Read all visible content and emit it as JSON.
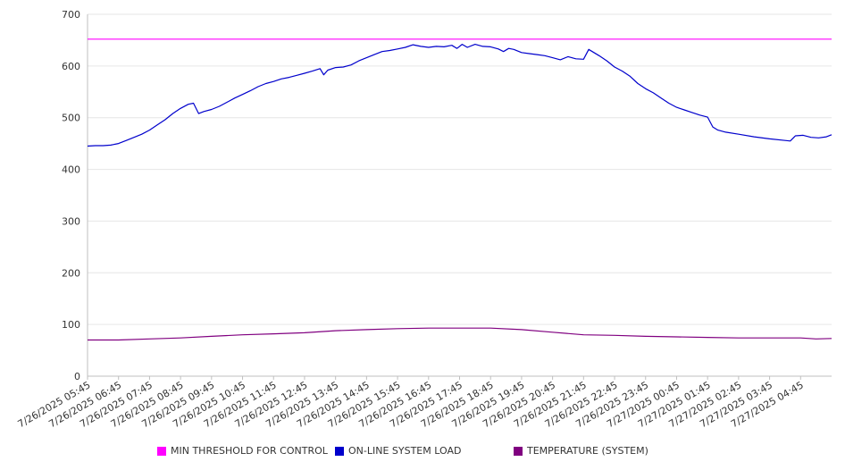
{
  "chart_data": {
    "type": "line",
    "title": "",
    "xlabel": "",
    "ylabel": "",
    "ylim": [
      0,
      700
    ],
    "yticks": [
      "0",
      "100",
      "200",
      "300",
      "400",
      "500",
      "600",
      "700"
    ],
    "x_tick_labels": [
      "7/26/2025 05:45",
      "7/26/2025 06:45",
      "7/26/2025 07:45",
      "7/26/2025 08:45",
      "7/26/2025 09:45",
      "7/26/2025 10:45",
      "7/26/2025 11:45",
      "7/26/2025 12:45",
      "7/26/2025 13:45",
      "7/26/2025 14:45",
      "7/26/2025 15:45",
      "7/26/2025 16:45",
      "7/26/2025 17:45",
      "7/26/2025 18:45",
      "7/26/2025 19:45",
      "7/26/2025 20:45",
      "7/26/2025 21:45",
      "7/26/2025 22:45",
      "7/26/2025 23:45",
      "7/27/2025 00:45",
      "7/27/2025 01:45",
      "7/27/2025 02:45",
      "7/27/2025 03:45",
      "7/27/2025 04:45"
    ],
    "xlim": [
      "7/26/2025 05:45",
      "7/27/2025 05:45"
    ],
    "grid": "horizontal",
    "legend_position": "bottom",
    "series": [
      {
        "name": "MIN THRESHOLD FOR CONTROL",
        "color": "#ff00ff",
        "points": [
          [
            "7/26/2025 05:45",
            652
          ],
          [
            "7/27/2025 05:45",
            652
          ]
        ]
      },
      {
        "name": "ON-LINE SYSTEM LOAD",
        "color": "#0000cc",
        "points": [
          [
            "7/26/2025 05:45",
            445
          ],
          [
            "7/26/2025 06:00",
            446
          ],
          [
            "7/26/2025 06:15",
            446
          ],
          [
            "7/26/2025 06:30",
            447
          ],
          [
            "7/26/2025 06:45",
            450
          ],
          [
            "7/26/2025 07:00",
            456
          ],
          [
            "7/26/2025 07:15",
            462
          ],
          [
            "7/26/2025 07:30",
            468
          ],
          [
            "7/26/2025 07:45",
            476
          ],
          [
            "7/26/2025 08:00",
            486
          ],
          [
            "7/26/2025 08:15",
            496
          ],
          [
            "7/26/2025 08:30",
            508
          ],
          [
            "7/26/2025 08:45",
            518
          ],
          [
            "7/26/2025 09:00",
            526
          ],
          [
            "7/26/2025 09:10",
            528
          ],
          [
            "7/26/2025 09:20",
            508
          ],
          [
            "7/26/2025 09:30",
            512
          ],
          [
            "7/26/2025 09:45",
            516
          ],
          [
            "7/26/2025 10:00",
            522
          ],
          [
            "7/26/2025 10:15",
            530
          ],
          [
            "7/26/2025 10:30",
            538
          ],
          [
            "7/26/2025 10:45",
            545
          ],
          [
            "7/26/2025 11:00",
            552
          ],
          [
            "7/26/2025 11:15",
            560
          ],
          [
            "7/26/2025 11:30",
            566
          ],
          [
            "7/26/2025 11:45",
            570
          ],
          [
            "7/26/2025 12:00",
            575
          ],
          [
            "7/26/2025 12:15",
            578
          ],
          [
            "7/26/2025 12:30",
            582
          ],
          [
            "7/26/2025 12:45",
            586
          ],
          [
            "7/26/2025 13:00",
            590
          ],
          [
            "7/26/2025 13:15",
            595
          ],
          [
            "7/26/2025 13:22",
            583
          ],
          [
            "7/26/2025 13:30",
            592
          ],
          [
            "7/26/2025 13:45",
            597
          ],
          [
            "7/26/2025 14:00",
            598
          ],
          [
            "7/26/2025 14:15",
            602
          ],
          [
            "7/26/2025 14:30",
            610
          ],
          [
            "7/26/2025 14:45",
            616
          ],
          [
            "7/26/2025 15:00",
            622
          ],
          [
            "7/26/2025 15:15",
            628
          ],
          [
            "7/26/2025 15:30",
            630
          ],
          [
            "7/26/2025 15:45",
            633
          ],
          [
            "7/26/2025 16:00",
            636
          ],
          [
            "7/26/2025 16:15",
            641
          ],
          [
            "7/26/2025 16:30",
            638
          ],
          [
            "7/26/2025 16:45",
            636
          ],
          [
            "7/26/2025 17:00",
            638
          ],
          [
            "7/26/2025 17:15",
            637
          ],
          [
            "7/26/2025 17:30",
            640
          ],
          [
            "7/26/2025 17:40",
            634
          ],
          [
            "7/26/2025 17:50",
            642
          ],
          [
            "7/26/2025 18:00",
            636
          ],
          [
            "7/26/2025 18:15",
            642
          ],
          [
            "7/26/2025 18:30",
            638
          ],
          [
            "7/26/2025 18:45",
            637
          ],
          [
            "7/26/2025 19:00",
            633
          ],
          [
            "7/26/2025 19:10",
            628
          ],
          [
            "7/26/2025 19:20",
            634
          ],
          [
            "7/26/2025 19:30",
            632
          ],
          [
            "7/26/2025 19:45",
            626
          ],
          [
            "7/26/2025 20:00",
            624
          ],
          [
            "7/26/2025 20:15",
            622
          ],
          [
            "7/26/2025 20:30",
            620
          ],
          [
            "7/26/2025 20:45",
            616
          ],
          [
            "7/26/2025 21:00",
            612
          ],
          [
            "7/26/2025 21:15",
            618
          ],
          [
            "7/26/2025 21:30",
            614
          ],
          [
            "7/26/2025 21:45",
            613
          ],
          [
            "7/26/2025 21:55",
            632
          ],
          [
            "7/26/2025 22:05",
            626
          ],
          [
            "7/26/2025 22:15",
            620
          ],
          [
            "7/26/2025 22:30",
            610
          ],
          [
            "7/26/2025 22:45",
            598
          ],
          [
            "7/26/2025 23:00",
            590
          ],
          [
            "7/26/2025 23:15",
            580
          ],
          [
            "7/26/2025 23:30",
            566
          ],
          [
            "7/26/2025 23:45",
            556
          ],
          [
            "7/27/2025 00:00",
            548
          ],
          [
            "7/27/2025 00:15",
            538
          ],
          [
            "7/27/2025 00:30",
            528
          ],
          [
            "7/27/2025 00:45",
            520
          ],
          [
            "7/27/2025 01:00",
            515
          ],
          [
            "7/27/2025 01:15",
            510
          ],
          [
            "7/27/2025 01:30",
            505
          ],
          [
            "7/27/2025 01:45",
            501
          ],
          [
            "7/27/2025 01:55",
            482
          ],
          [
            "7/27/2025 02:05",
            476
          ],
          [
            "7/27/2025 02:20",
            472
          ],
          [
            "7/27/2025 02:45",
            468
          ],
          [
            "7/27/2025 03:15",
            463
          ],
          [
            "7/27/2025 03:45",
            459
          ],
          [
            "7/27/2025 04:15",
            456
          ],
          [
            "7/27/2025 04:25",
            455
          ],
          [
            "7/27/2025 04:35",
            465
          ],
          [
            "7/27/2025 04:50",
            466
          ],
          [
            "7/27/2025 05:05",
            462
          ],
          [
            "7/27/2025 05:20",
            461
          ],
          [
            "7/27/2025 05:35",
            463
          ],
          [
            "7/27/2025 05:45",
            467
          ]
        ]
      },
      {
        "name": "TEMPERATURE (SYSTEM)",
        "color": "#800080",
        "points": [
          [
            "7/26/2025 05:45",
            70
          ],
          [
            "7/26/2025 06:45",
            70
          ],
          [
            "7/26/2025 07:45",
            72
          ],
          [
            "7/26/2025 08:45",
            74
          ],
          [
            "7/26/2025 09:45",
            77
          ],
          [
            "7/26/2025 10:45",
            80
          ],
          [
            "7/26/2025 11:45",
            82
          ],
          [
            "7/26/2025 12:45",
            84
          ],
          [
            "7/26/2025 13:45",
            88
          ],
          [
            "7/26/2025 14:45",
            90
          ],
          [
            "7/26/2025 15:45",
            92
          ],
          [
            "7/26/2025 16:45",
            93
          ],
          [
            "7/26/2025 17:45",
            93
          ],
          [
            "7/26/2025 18:45",
            93
          ],
          [
            "7/26/2025 19:45",
            90
          ],
          [
            "7/26/2025 20:45",
            85
          ],
          [
            "7/26/2025 21:45",
            80
          ],
          [
            "7/26/2025 22:45",
            79
          ],
          [
            "7/26/2025 23:45",
            77
          ],
          [
            "7/27/2025 00:45",
            76
          ],
          [
            "7/27/2025 01:45",
            75
          ],
          [
            "7/27/2025 02:45",
            74
          ],
          [
            "7/27/2025 03:45",
            74
          ],
          [
            "7/27/2025 04:45",
            74
          ],
          [
            "7/27/2025 05:15",
            72
          ],
          [
            "7/27/2025 05:45",
            73
          ]
        ]
      }
    ]
  }
}
